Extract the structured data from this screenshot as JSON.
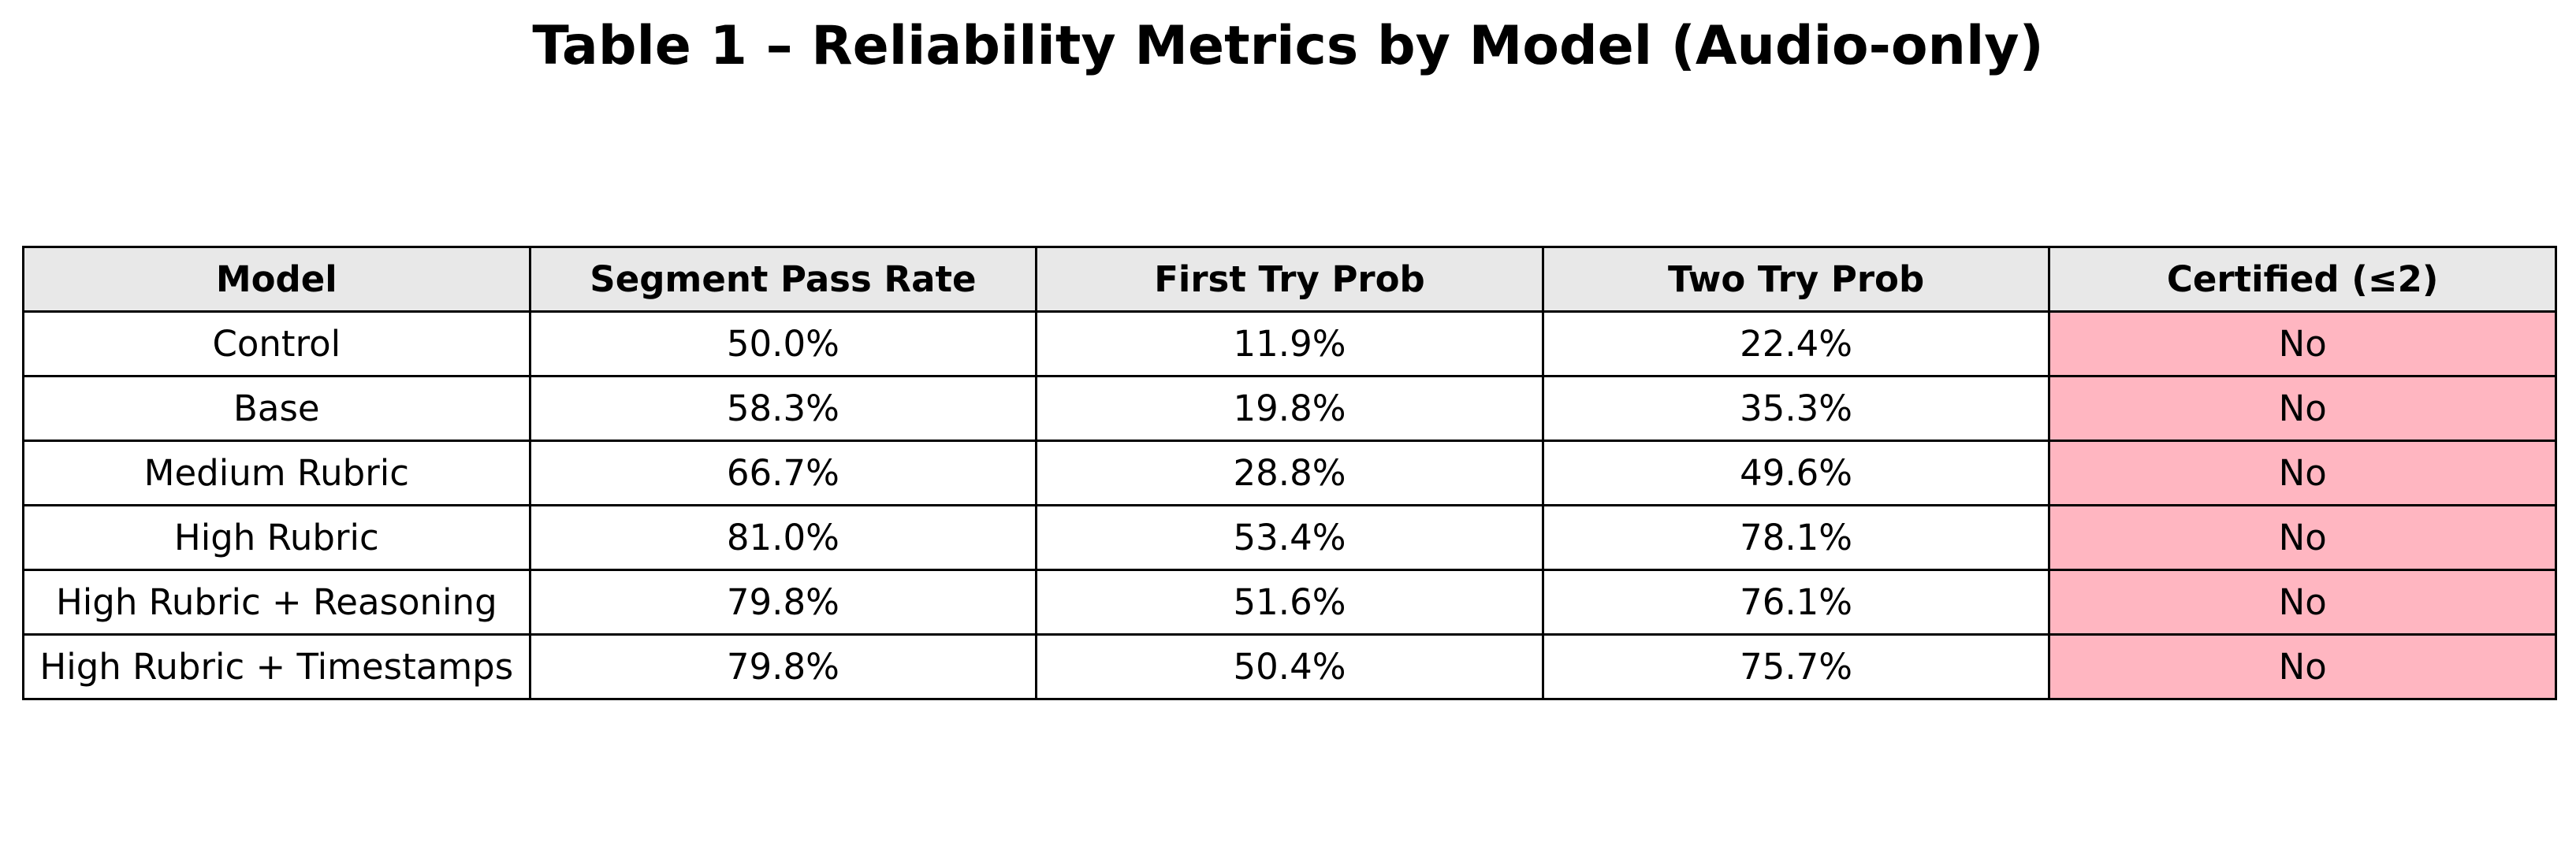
{
  "chart_data": {
    "type": "table",
    "title": "Table 1 – Reliability Metrics by Model (Audio-only)",
    "columns": [
      "Model",
      "Segment Pass Rate",
      "First Try Prob",
      "Two Try Prob",
      "Certified (≤2)"
    ],
    "rows": [
      [
        "Control",
        "50.0%",
        "11.9%",
        "22.4%",
        "No"
      ],
      [
        "Base",
        "58.3%",
        "19.8%",
        "35.3%",
        "No"
      ],
      [
        "Medium Rubric",
        "66.7%",
        "28.8%",
        "49.6%",
        "No"
      ],
      [
        "High Rubric",
        "81.0%",
        "53.4%",
        "78.1%",
        "No"
      ],
      [
        "High Rubric + Reasoning",
        "79.8%",
        "51.6%",
        "76.1%",
        "No"
      ],
      [
        "High Rubric + Timestamps",
        "79.8%",
        "50.4%",
        "75.7%",
        "No"
      ]
    ]
  },
  "colors": {
    "header_background": "#e8e8e8",
    "certified_no_background": "#ffb6c1",
    "border": "#000000",
    "text": "#000000"
  }
}
